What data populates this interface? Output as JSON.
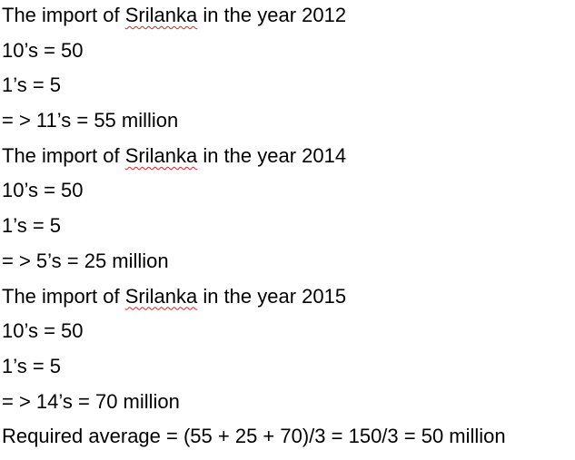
{
  "document": {
    "lines": [
      {
        "kind": "heading",
        "before": "The import of ",
        "word": "Srilanka",
        "after": " in the year 2012"
      },
      {
        "kind": "plain",
        "text": "10’s = 50"
      },
      {
        "kind": "plain",
        "text": "1’s = 5"
      },
      {
        "kind": "plain",
        "text": "= > 11’s = 55 million"
      },
      {
        "kind": "heading",
        "before": "The import of ",
        "word": "Srilanka",
        "after": " in the year 2014"
      },
      {
        "kind": "plain",
        "text": "10’s = 50"
      },
      {
        "kind": "plain",
        "text": "1’s = 5"
      },
      {
        "kind": "plain",
        "text": "= > 5’s = 25 million"
      },
      {
        "kind": "heading",
        "before": "The import of ",
        "word": "Srilanka",
        "after": " in the year 2015"
      },
      {
        "kind": "plain",
        "text": "10’s = 50"
      },
      {
        "kind": "plain",
        "text": "1’s = 5"
      },
      {
        "kind": "plain",
        "text": "= > 14’s = 70 million"
      },
      {
        "kind": "plain",
        "text": "Required average = (55 + 25 + 70)/3 = 150/3 = 50 million"
      }
    ]
  },
  "colors": {
    "text": "#000000",
    "spellcheck_underline": "#e0201f",
    "background": "#ffffff"
  }
}
